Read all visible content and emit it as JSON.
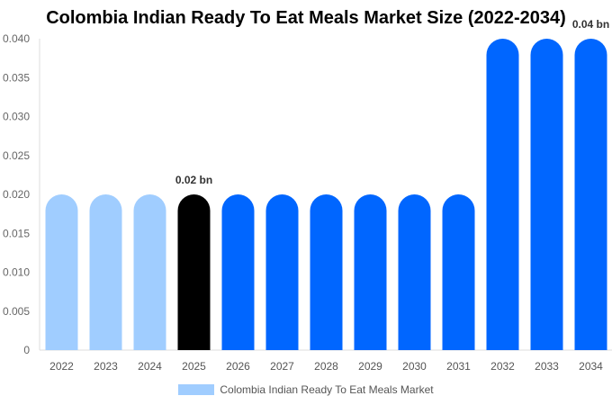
{
  "chart_data": {
    "type": "bar",
    "title": "Colombia Indian Ready To Eat Meals Market Size (2022-2034)",
    "categories": [
      "2022",
      "2023",
      "2024",
      "2025",
      "2026",
      "2027",
      "2028",
      "2029",
      "2030",
      "2031",
      "2032",
      "2033",
      "2034"
    ],
    "series": [
      {
        "name": "Colombia Indian Ready To Eat Meals Market",
        "values": [
          0.02,
          0.02,
          0.02,
          0.02,
          0.02,
          0.02,
          0.02,
          0.02,
          0.02,
          0.02,
          0.04,
          0.04,
          0.04
        ]
      }
    ],
    "bar_colors": [
      "#a0cdff",
      "#a0cdff",
      "#a0cdff",
      "#000000",
      "#0066ff",
      "#0066ff",
      "#0066ff",
      "#0066ff",
      "#0066ff",
      "#0066ff",
      "#0066ff",
      "#0066ff",
      "#0066ff"
    ],
    "data_labels": [
      {
        "category": "2025",
        "text": "0.02 bn"
      },
      {
        "category": "2034",
        "text": "0.04 bn"
      }
    ],
    "yticks": [
      "0",
      "0.005",
      "0.010",
      "0.015",
      "0.020",
      "0.025",
      "0.030",
      "0.035",
      "0.040"
    ],
    "ylim": [
      0,
      0.04
    ],
    "xlabel": "",
    "ylabel": "",
    "grid": false,
    "legend_position": "bottom"
  }
}
